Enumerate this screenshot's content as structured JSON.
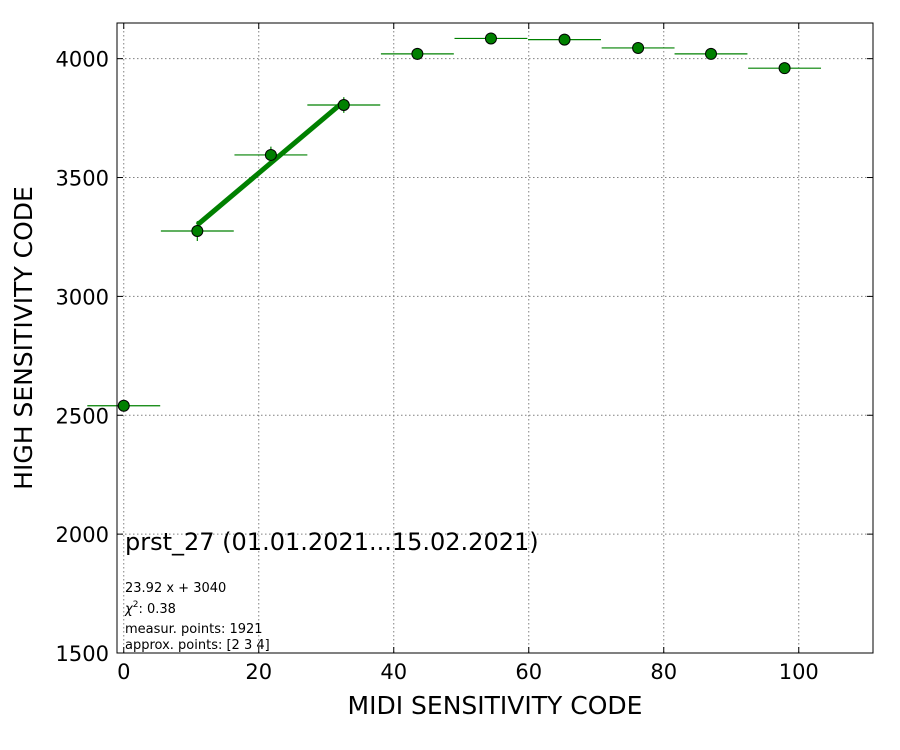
{
  "chart_data": {
    "type": "scatter",
    "xlabel": "MIDI SENSITIVITY CODE",
    "ylabel": "HIGH SENSITIVITY CODE",
    "xlim": [
      -1,
      111
    ],
    "ylim": [
      1500,
      4150
    ],
    "xticks": [
      0,
      20,
      40,
      60,
      80,
      100
    ],
    "yticks": [
      1500,
      2000,
      2500,
      3000,
      3500,
      4000
    ],
    "grid": true,
    "grid_style": "dotted",
    "marker_color": "#008000",
    "series": [
      {
        "points": [
          {
            "x": 0.0,
            "y": 2540,
            "xerr": 5.4,
            "yerr": 0
          },
          {
            "x": 10.9,
            "y": 3275,
            "xerr": 5.4,
            "yerr": 42
          },
          {
            "x": 21.8,
            "y": 3595,
            "xerr": 5.4,
            "yerr": 35
          },
          {
            "x": 32.6,
            "y": 3805,
            "xerr": 5.4,
            "yerr": 33
          },
          {
            "x": 43.5,
            "y": 4020,
            "xerr": 5.4,
            "yerr": 25
          },
          {
            "x": 54.4,
            "y": 4085,
            "xerr": 5.4,
            "yerr": 0
          },
          {
            "x": 65.3,
            "y": 4080,
            "xerr": 5.4,
            "yerr": 0
          },
          {
            "x": 76.2,
            "y": 4045,
            "xerr": 5.4,
            "yerr": 0
          },
          {
            "x": 87.0,
            "y": 4020,
            "xerr": 5.4,
            "yerr": 0
          },
          {
            "x": 97.9,
            "y": 3960,
            "xerr": 5.4,
            "yerr": 0
          }
        ]
      }
    ],
    "fit_line": {
      "slope": 23.92,
      "intercept": 3040,
      "x_range": [
        10.9,
        32.6
      ],
      "color": "#008000"
    },
    "annotations": {
      "title": "prst_27 (01.01.2021...15.02.2021)",
      "equation": "23.92 x + 3040",
      "chi2_label": "χ",
      "chi2_sup": "2",
      "chi2_value": ": 0.38",
      "measur_points": "measur. points: 1921",
      "approx_points": "approx. points: [2 3 4]"
    }
  }
}
